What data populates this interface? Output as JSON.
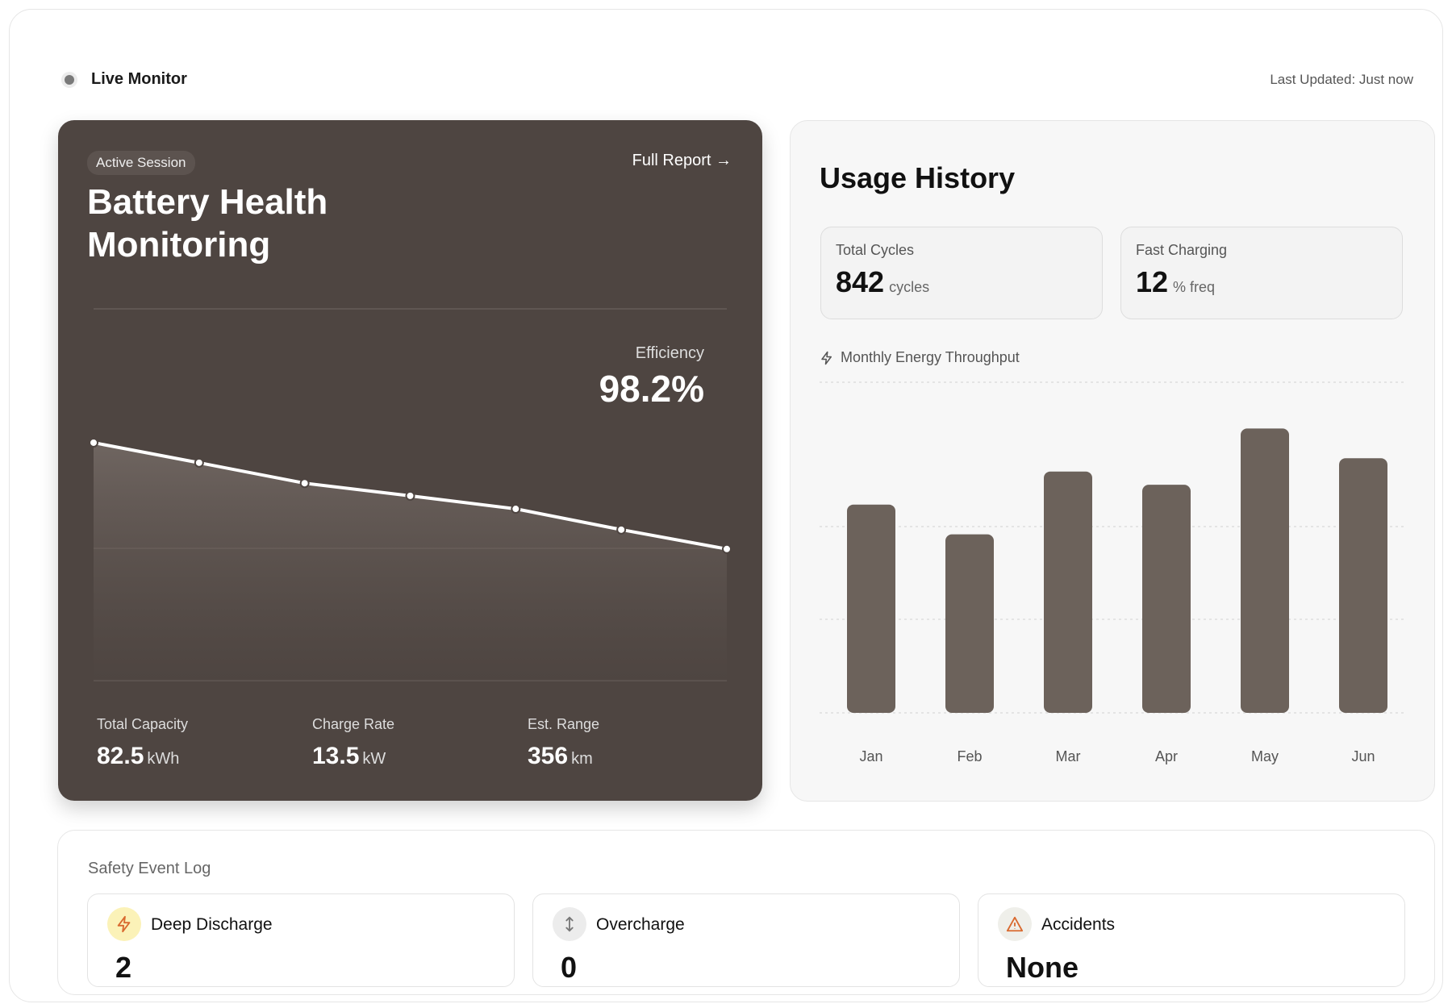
{
  "header": {
    "live_label": "Live Monitor",
    "last_updated": "Last Updated: Just now"
  },
  "battery": {
    "badge": "Active Session",
    "full_report": "Full Report",
    "title_line1": "Battery Health",
    "title_line2": "Monitoring",
    "efficiency_label": "Efficiency",
    "efficiency_value": "98.2%",
    "stats": [
      {
        "label": "Total Capacity",
        "value": "82.5",
        "unit": "kWh"
      },
      {
        "label": "Charge Rate",
        "value": "13.5",
        "unit": "kW"
      },
      {
        "label": "Est. Range",
        "value": "356",
        "unit": "km"
      }
    ]
  },
  "usage": {
    "title": "Usage History",
    "stats": [
      {
        "label": "Total Cycles",
        "value": "842",
        "unit": "cycles"
      },
      {
        "label": "Fast Charging",
        "value": "12",
        "unit": "% freq"
      }
    ],
    "chart_label": "Monthly Energy Throughput",
    "icon": "lightning-icon"
  },
  "safety": {
    "title": "Safety Event Log",
    "events": [
      {
        "label": "Deep Discharge",
        "value": "2",
        "icon": "lightning-icon"
      },
      {
        "label": "Overcharge",
        "value": "0",
        "icon": "arrows-vertical-icon"
      },
      {
        "label": "Accidents",
        "value": "None",
        "icon": "warning-icon"
      }
    ]
  },
  "colors": {
    "dark_card": "#4e4541",
    "bar": "#6c625b",
    "line": "#ffffff",
    "warning": "#d9692f"
  },
  "chart_data": [
    {
      "type": "area",
      "values": [
        64,
        58.6,
        53.1,
        49.7,
        46.2,
        40.6,
        35.4
      ],
      "ylim": [
        0,
        100
      ],
      "grid": true
    },
    {
      "type": "bar",
      "categories": [
        "Jan",
        "Feb",
        "Mar",
        "Apr",
        "May",
        "Jun"
      ],
      "values": [
        63,
        54,
        73,
        69,
        86,
        77
      ],
      "ylim": [
        0,
        100
      ],
      "grid": true
    }
  ]
}
